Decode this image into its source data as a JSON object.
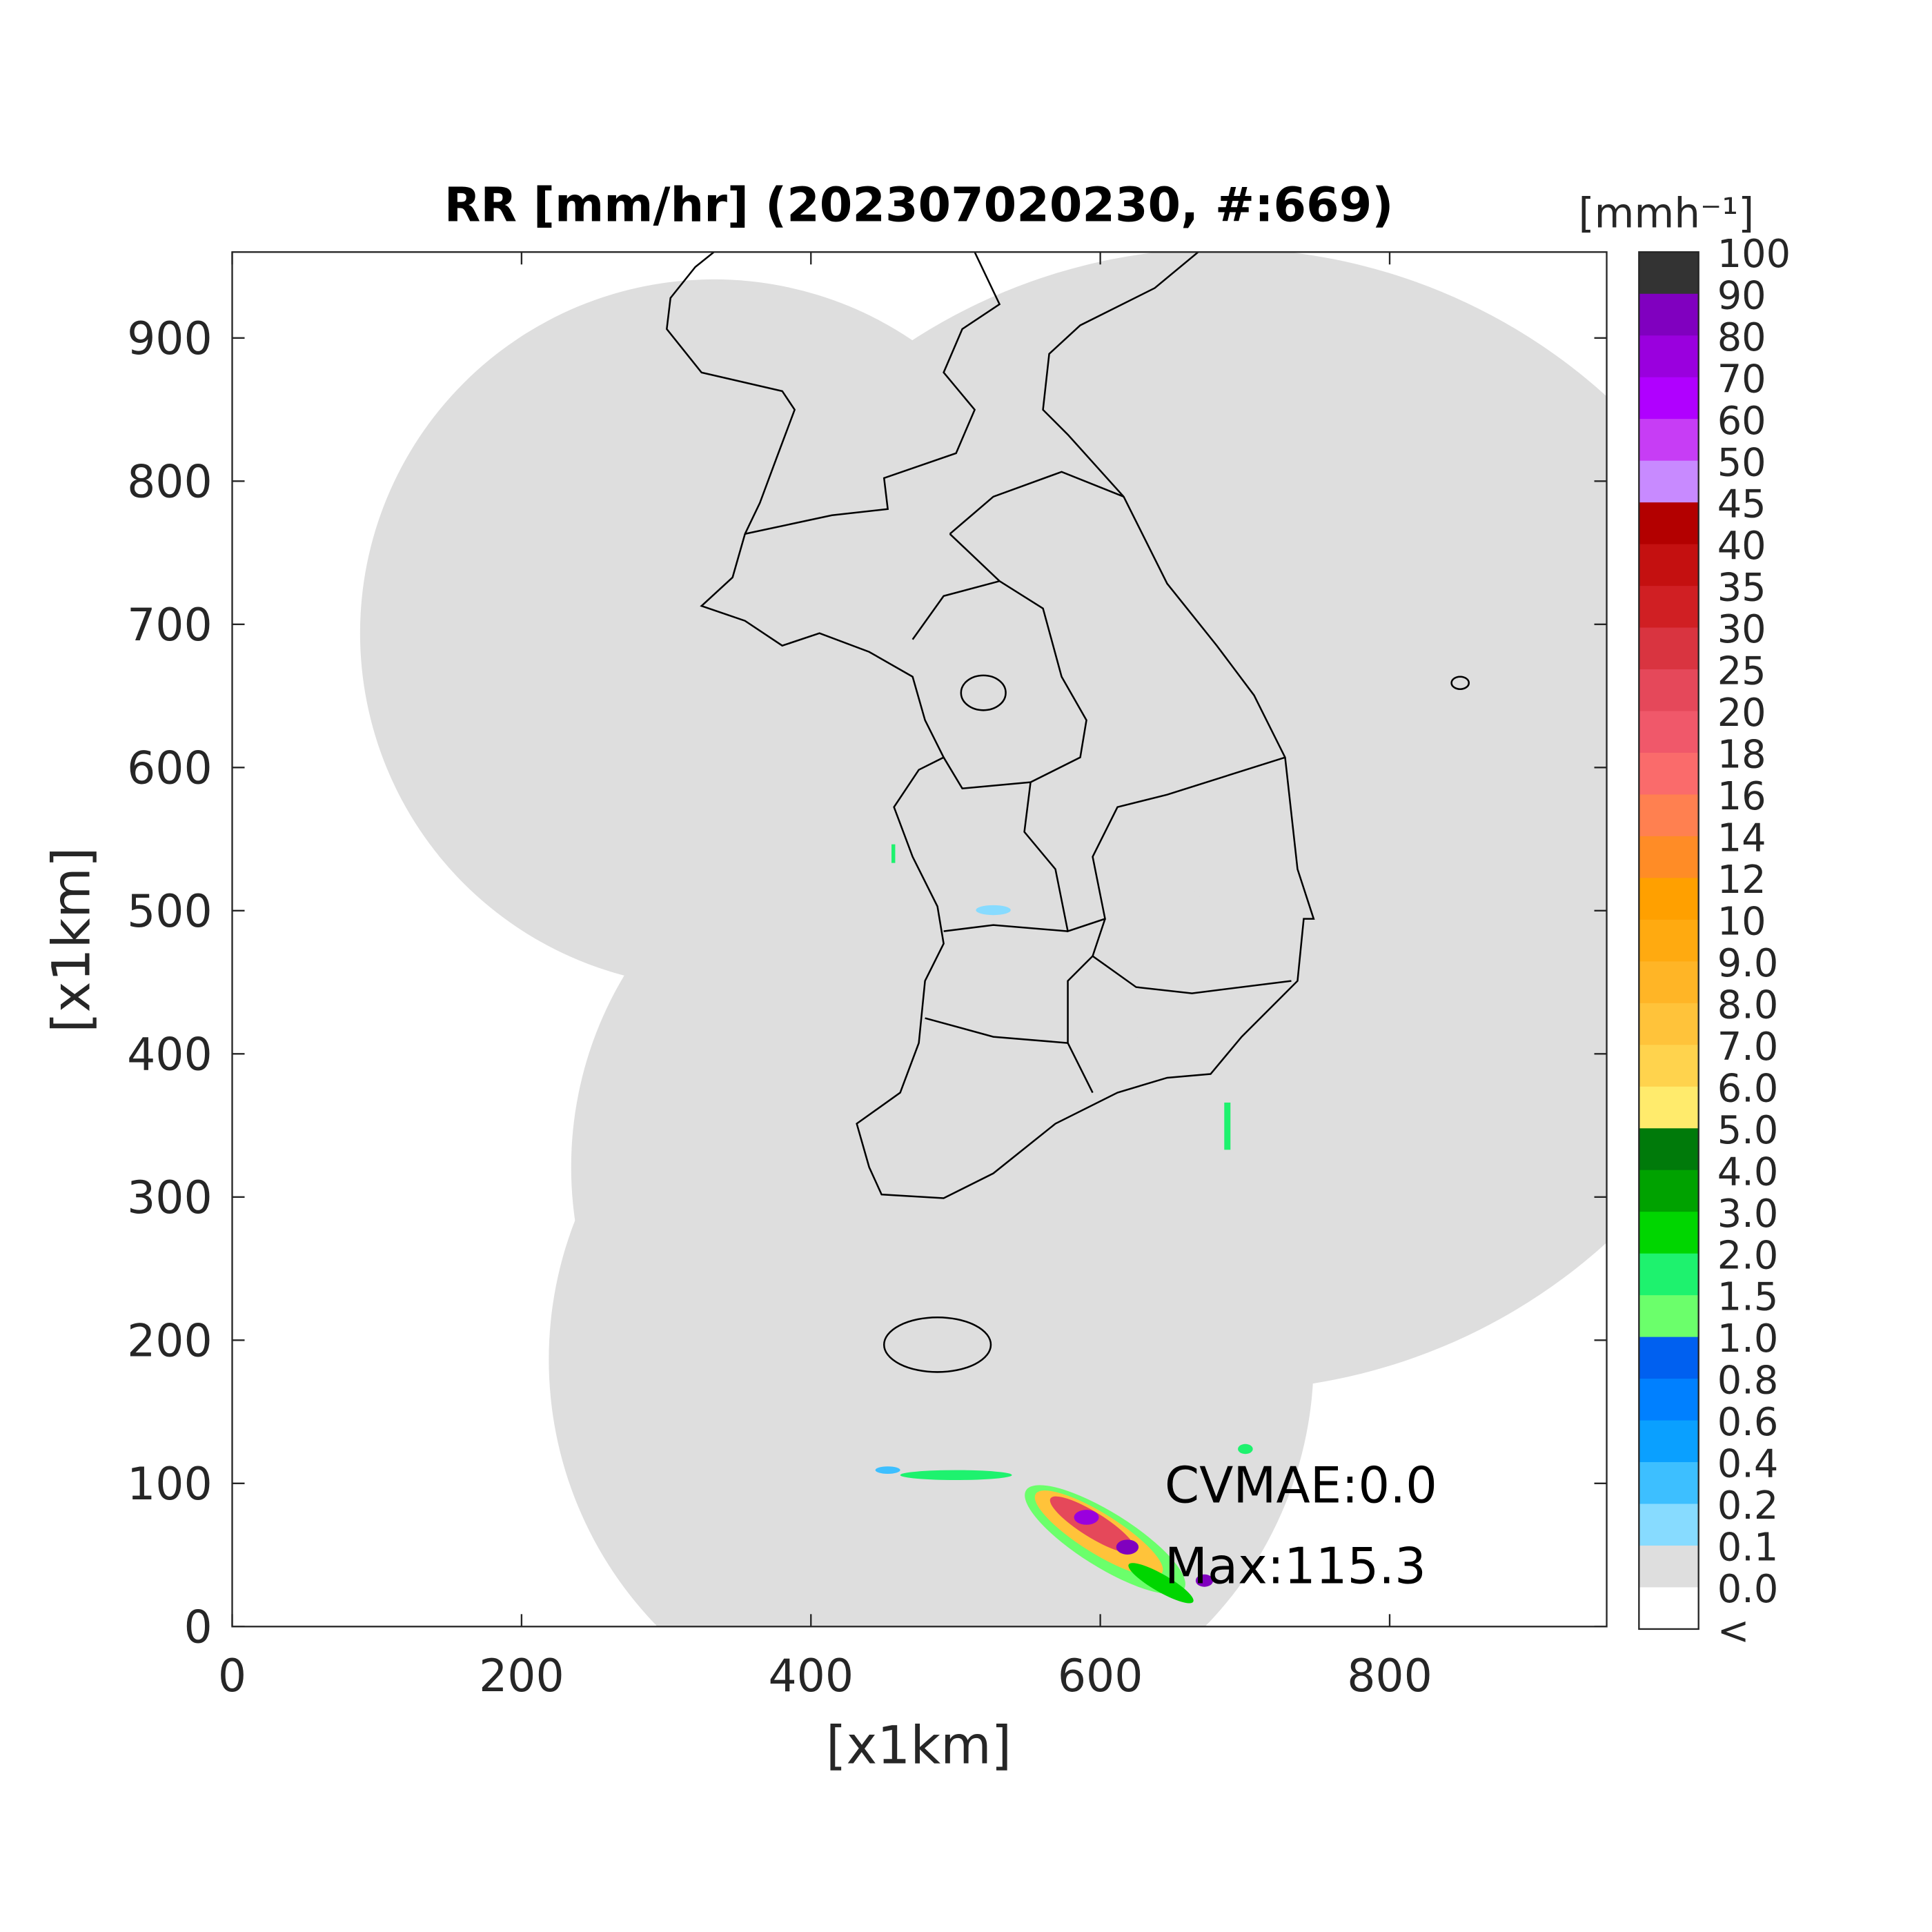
{
  "chart_data": {
    "type": "map",
    "title": "RR [mm/hr] (202307020230, #:669)",
    "x_label": "[x1km]",
    "y_label": "[x1km]",
    "xlim": [
      0,
      950
    ],
    "ylim": [
      0,
      960
    ],
    "xticks": [
      0,
      200,
      400,
      600,
      800
    ],
    "yticks": [
      0,
      100,
      200,
      300,
      400,
      500,
      600,
      700,
      800,
      900
    ],
    "annotations": [
      "CVMAE:0.0",
      "Max:115.3"
    ],
    "colorbar": {
      "label": "[mmh⁻¹]",
      "ticks": [
        100,
        90,
        80,
        70,
        60,
        50,
        45,
        40,
        35,
        30,
        25,
        20,
        18,
        16,
        14,
        12,
        10,
        {
          "value": 9,
          "label": "9.0"
        },
        {
          "value": 8,
          "label": "8.0"
        },
        {
          "value": 7,
          "label": "7.0"
        },
        {
          "value": 6,
          "label": "6.0"
        },
        {
          "value": 5,
          "label": "5.0"
        },
        {
          "value": 4,
          "label": "4.0"
        },
        {
          "value": 3,
          "label": "3.0"
        },
        {
          "value": 2,
          "label": "2.0"
        },
        1.5,
        {
          "value": 1,
          "label": "1.0"
        },
        0.8,
        0.6,
        0.4,
        0.2,
        0.1,
        {
          "value": 0,
          "label": "0.0"
        }
      ],
      "under_label": "<",
      "colors": [
        "#333333",
        "#8000bf",
        "#9a00de",
        "#b000ff",
        "#c73df5",
        "#c88aff",
        "#b30000",
        "#c41010",
        "#d01f23",
        "#d93440",
        "#e5485a",
        "#f0586a",
        "#fa6b6b",
        "#ff8050",
        "#ff8c26",
        "#ffa000",
        "#ffaa10",
        "#ffb526",
        "#ffc33a",
        "#ffd34d",
        "#ffeb6c",
        "#007a0a",
        "#00a200",
        "#00d600",
        "#1ef26e",
        "#6bff6b",
        "#0060f0",
        "#0080ff",
        "#0aa0ff",
        "#3dbfff",
        "#87dbff",
        "#dedede",
        "#ffffff"
      ]
    }
  }
}
